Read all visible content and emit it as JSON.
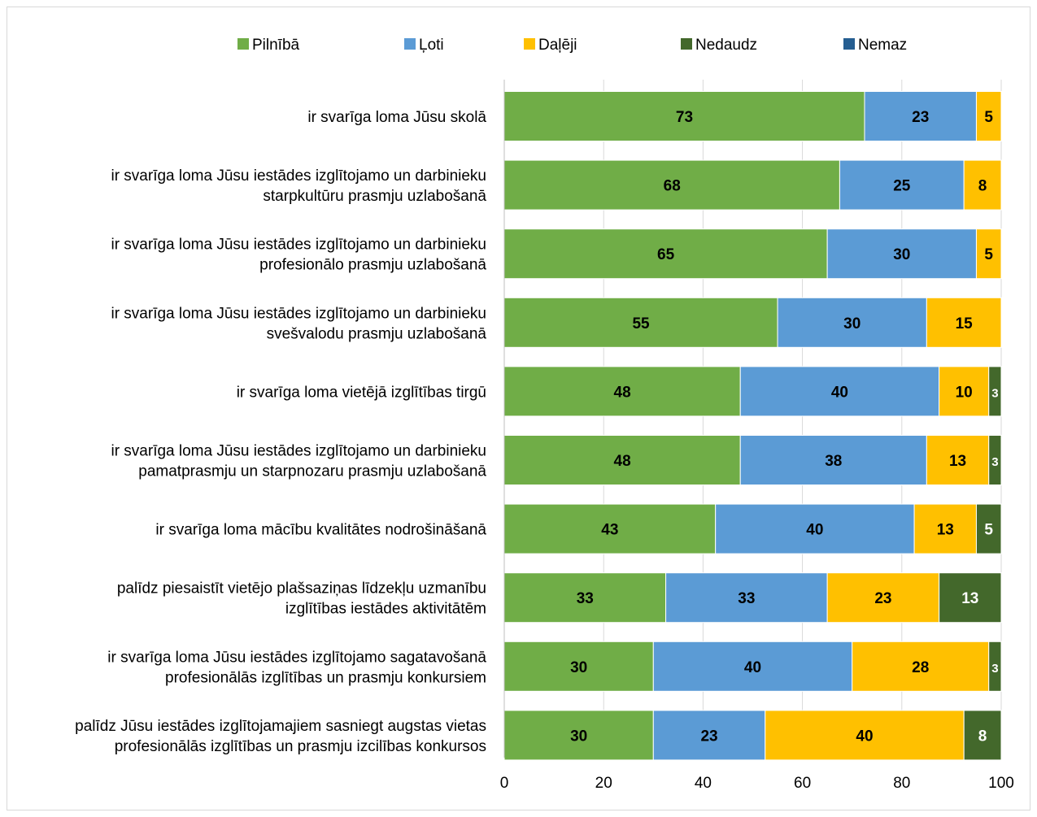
{
  "chart_data": {
    "type": "bar",
    "orientation": "horizontal",
    "stacked": true,
    "title": "",
    "xlabel": "",
    "ylabel": "",
    "xlim": [
      0,
      100
    ],
    "xticks": [
      "0",
      "20",
      "40",
      "60",
      "80",
      "100"
    ],
    "grid": true,
    "legend_position": "top",
    "categories": [
      [
        "ir svarīga loma Jūsu skolā"
      ],
      [
        "ir svarīga loma Jūsu iestādes izglītojamo un darbinieku",
        "starpkultūru prasmju uzlabošanā"
      ],
      [
        "ir svarīga loma Jūsu iestādes izglītojamo un darbinieku",
        "profesionālo prasmju uzlabošanā"
      ],
      [
        "ir svarīga loma Jūsu iestādes izglītojamo un darbinieku",
        "svešvalodu prasmju uzlabošanā"
      ],
      [
        "ir svarīga loma vietējā izglītības tirgū"
      ],
      [
        "ir svarīga loma Jūsu iestādes izglītojamo un darbinieku",
        "pamatprasmju un starpnozaru prasmju uzlabošanā"
      ],
      [
        "ir svarīga loma mācību kvalitātes nodrošināšanā"
      ],
      [
        "palīdz piesaistīt vietējo plašsaziņas līdzekļu uzmanību",
        "izglītības iestādes aktivitātēm"
      ],
      [
        "ir svarīga loma Jūsu iestādes izglītojamo sagatavošanā",
        "profesionālās izglītības un prasmju konkursiem"
      ],
      [
        "palīdz Jūsu iestādes izglītojamajiem sasniegt augstas vietas",
        "profesionālās izglītības un prasmju izcilības konkursos"
      ]
    ],
    "series": [
      {
        "name": "Pilnībā",
        "color": "#70ad47",
        "values": [
          72.5,
          67.5,
          65,
          55,
          47.5,
          47.5,
          42.5,
          32.5,
          30,
          30
        ],
        "labels": [
          "73",
          "68",
          "65",
          "55",
          "48",
          "48",
          "43",
          "33",
          "30",
          "30"
        ]
      },
      {
        "name": "Ļoti",
        "color": "#5b9bd5",
        "values": [
          22.5,
          25,
          30,
          30,
          40,
          37.5,
          40,
          32.5,
          40,
          22.5
        ],
        "labels": [
          "23",
          "25",
          "30",
          "30",
          "40",
          "38",
          "40",
          "33",
          "40",
          "23"
        ]
      },
      {
        "name": "Daļēji",
        "color": "#ffc000",
        "values": [
          5,
          7.5,
          5,
          15,
          10,
          12.5,
          12.5,
          22.5,
          27.5,
          40
        ],
        "labels": [
          "5",
          "8",
          "5",
          "15",
          "10",
          "13",
          "13",
          "23",
          "28",
          "40"
        ]
      },
      {
        "name": "Nedaudz",
        "color": "#43682b",
        "values": [
          0,
          0,
          0,
          0,
          2.5,
          2.5,
          5,
          12.5,
          2.5,
          7.5
        ],
        "labels": [
          "",
          "",
          "",
          "",
          "3",
          "3",
          "5",
          "13",
          "3",
          "8"
        ]
      },
      {
        "name": "Nemaz",
        "color": "#255e91",
        "values": [
          0,
          0,
          0,
          0,
          0,
          0,
          0,
          0,
          0,
          0
        ],
        "labels": [
          "",
          "",
          "",
          "",
          "",
          "",
          "",
          "",
          "",
          ""
        ]
      }
    ]
  }
}
